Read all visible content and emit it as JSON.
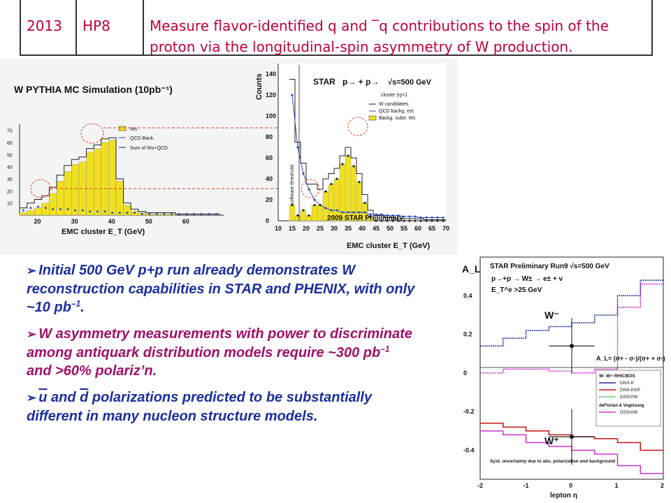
{
  "table": {
    "year": "2013",
    "code": "HP8",
    "text_line1": "Measure flavor-identified q and ‾q contributions to the spin of the",
    "text_line2": "proton via the longitudinal-spin asymmetry of W production."
  },
  "left_plot": {
    "title": "W PYTHIA MC Simulation (10pb⁻¹)",
    "xlabel": "EMC cluster E_T (GeV)",
    "xticks": [
      "20",
      "30",
      "40",
      "50",
      "60"
    ],
    "yticks": [
      "70",
      "60",
      "50",
      "40",
      "30",
      "20",
      "10"
    ],
    "legend": [
      "Ws",
      "QCD Back.",
      "Sum of Ws+QCD"
    ]
  },
  "right_plot": {
    "ylabel": "Counts",
    "header": "STAR",
    "reaction": "p→ + p→",
    "energy": "√s=500 GeV",
    "cut": "cluster |η|<1",
    "legend": [
      "W candidates",
      "QCD backg. est.",
      "Backg. subtr. Ws"
    ],
    "yticks": [
      "140",
      "120",
      "100",
      "80",
      "60",
      "40",
      "20",
      "0"
    ],
    "xticks": [
      "10",
      "15",
      "20",
      "25",
      "30",
      "35",
      "40",
      "45",
      "50",
      "55",
      "60",
      "65",
      "70"
    ],
    "xlabel": "EMC cluster E_T (GeV)",
    "threshold_label": "software threshold",
    "preliminary": "2009 STAR Preliminary"
  },
  "bullets": {
    "b1_text": "Initial 500 GeV p+p run already demonstrates W reconstruction capabilities in STAR and PHENIX, with only ~10 pb",
    "b1_sup": "–1",
    "b1_end": ".",
    "b2_text": "W asymmetry measurements with power to discriminate among antiquark distribution models require ~300 pb",
    "b2_sup": "–1",
    "b2_end": " and >60% polariz’n.",
    "b3_u": "u",
    "b3_mid": " and ",
    "b3_d": "d",
    "b3_rest": " polarizations predicted to be substantially different in many nucleon structure models.",
    "arrow": "➢"
  },
  "al_plot": {
    "ylabel": "A_L",
    "title": "STAR  Preliminary  Run9  √s=500 GeV",
    "reaction": "p→+p → W± → e± + ν",
    "cut": "E_T^e >25 GeV",
    "wminus": "W⁻",
    "wplus": "W⁺",
    "formula": "A_L= (σ+ - σ-)/(σ+ + σ-)",
    "legend_header": "W-   W+  RHICBOS",
    "legend": [
      "DNS-K",
      "DNS-KKP",
      "DSSV08"
    ],
    "legend_note": "deFlorian & Vogelsang",
    "legend_last": "DSSV08",
    "syst_note": "Syst. uncertainty due to abs. polarization and background",
    "yticks": [
      "0.4",
      "0.2",
      "0",
      "-0.2",
      "-0.4"
    ],
    "xticks": [
      "-2",
      "-1",
      "0",
      "1",
      "2"
    ],
    "xlabel": "lepton η",
    "colors": {
      "blue": "#1a2fa0",
      "red": "#d01010",
      "green": "#3cb030",
      "magenta": "#d030d0"
    }
  },
  "chart_data": [
    {
      "type": "bar",
      "title": "W PYTHIA MC Simulation (10pb⁻¹)",
      "xlabel": "EMC cluster E_T (GeV)",
      "xlim": [
        15,
        70
      ],
      "ylim": [
        0,
        75
      ],
      "x": [
        16,
        18,
        20,
        22,
        24,
        26,
        28,
        30,
        32,
        34,
        36,
        38,
        40,
        42,
        44,
        46,
        48,
        50,
        52,
        54,
        56,
        58,
        60,
        62,
        64,
        66,
        68
      ],
      "series": [
        {
          "name": "Ws",
          "values": [
            2,
            4,
            6,
            10,
            18,
            28,
            36,
            42,
            44,
            52,
            55,
            60,
            62,
            28,
            8,
            3,
            2,
            1,
            1,
            1,
            1,
            0,
            0,
            0,
            0,
            0,
            0
          ]
        },
        {
          "name": "QCD Back.",
          "values": [
            4,
            6,
            7,
            6,
            5,
            5,
            5,
            4,
            4,
            3,
            3,
            3,
            2,
            2,
            2,
            2,
            1,
            1,
            1,
            1,
            1,
            1,
            1,
            1,
            1,
            1,
            1
          ]
        }
      ]
    },
    {
      "type": "bar",
      "title": "2009 STAR Preliminary",
      "xlabel": "EMC cluster E_T (GeV)",
      "ylabel": "Counts",
      "xlim": [
        10,
        70
      ],
      "ylim": [
        0,
        150
      ],
      "x": [
        15,
        17,
        19,
        21,
        23,
        25,
        27,
        29,
        31,
        33,
        35,
        37,
        39,
        41,
        43,
        45,
        47,
        49,
        51,
        53,
        55,
        57,
        59,
        61,
        63,
        65,
        67,
        69
      ],
      "series": [
        {
          "name": "W candidates",
          "values": [
            135,
            75,
            55,
            35,
            35,
            30,
            40,
            45,
            50,
            62,
            70,
            60,
            45,
            25,
            10,
            5,
            5,
            3,
            3,
            2,
            2,
            2,
            2,
            2,
            1,
            1,
            1,
            1
          ]
        },
        {
          "name": "QCD backg. est.",
          "values": [
            120,
            70,
            45,
            30,
            20,
            15,
            12,
            10,
            10,
            8,
            8,
            8,
            8,
            8,
            6,
            6,
            6,
            5,
            5,
            5,
            4,
            4,
            4,
            3,
            3,
            3,
            3,
            3
          ]
        },
        {
          "name": "Backg. subtr. Ws",
          "values": [
            15,
            5,
            10,
            5,
            15,
            15,
            28,
            35,
            40,
            54,
            62,
            52,
            37,
            17,
            4,
            0,
            0,
            0,
            0,
            0,
            0,
            0,
            0,
            0,
            0,
            0,
            0,
            0
          ]
        }
      ]
    },
    {
      "type": "line",
      "title": "STAR  Preliminary  Run9  √s=500 GeV",
      "xlabel": "lepton η",
      "ylabel": "A_L",
      "xlim": [
        -2,
        2
      ],
      "ylim": [
        -0.55,
        0.6
      ],
      "x_edges": [
        -2,
        -1.5,
        -1,
        -0.5,
        0,
        0.5,
        1,
        1.5,
        2
      ],
      "series": [
        {
          "name": "W- DNS-K",
          "values": [
            0.14,
            0.18,
            0.22,
            0.24,
            0.26,
            0.3,
            0.4,
            0.48
          ]
        },
        {
          "name": "W- DSSV08",
          "values": [
            0.0,
            0.02,
            0.02,
            0.01,
            0.0,
            0.02,
            0.34,
            0.46
          ]
        },
        {
          "name": "W+ DNS-K",
          "values": [
            -0.26,
            -0.28,
            -0.3,
            -0.32,
            -0.33,
            -0.34,
            -0.36,
            -0.4
          ]
        },
        {
          "name": "W+ DSSV08",
          "values": [
            -0.3,
            -0.32,
            -0.36,
            -0.38,
            -0.4,
            -0.42,
            -0.48,
            -0.52
          ]
        }
      ],
      "points": [
        {
          "label": "W-",
          "x": 0,
          "y": 0.14
        },
        {
          "label": "W+",
          "x": 0,
          "y": -0.33
        }
      ]
    }
  ]
}
